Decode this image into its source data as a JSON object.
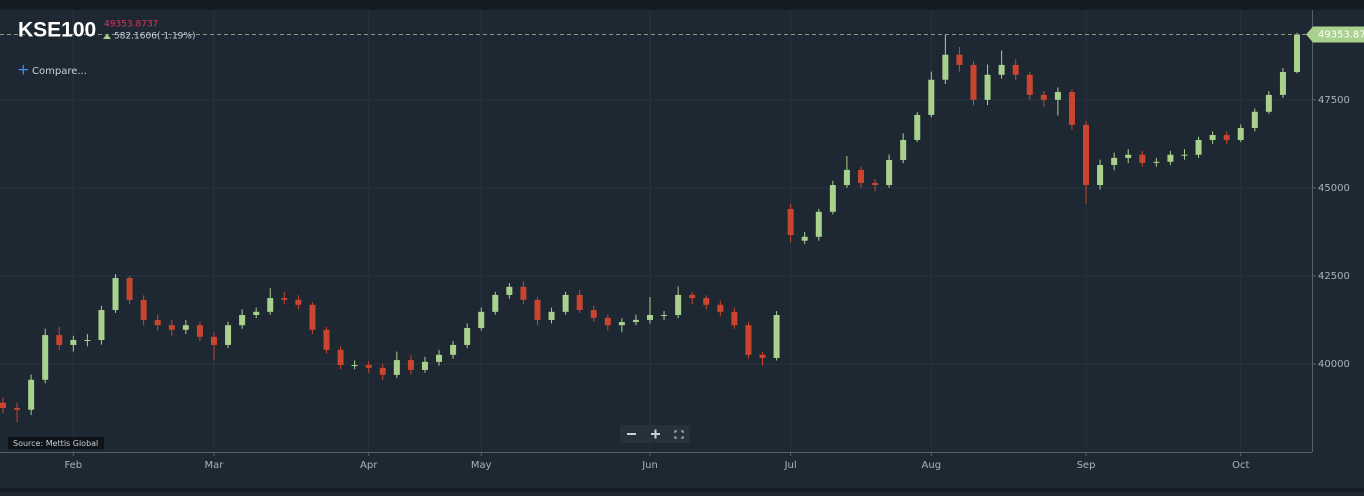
{
  "chart_data": {
    "type": "candlestick",
    "symbol": "KSE100",
    "price": 49353.8737,
    "change": 582.1606,
    "change_pct": {
      "value": 1.19,
      "label": "( 1.19%)"
    },
    "compare_label": "Compare...",
    "source": "Source: Mettis Global",
    "up_color": "#a9d18e",
    "down_color": "#c9452f",
    "grid": true,
    "ylim": [
      37500,
      50050
    ],
    "yticks": [
      40000,
      42500,
      45000,
      47500
    ],
    "categories": [
      null,
      null,
      null,
      null,
      null,
      "Feb",
      null,
      null,
      null,
      null,
      null,
      null,
      null,
      null,
      null,
      "Mar",
      null,
      null,
      null,
      null,
      null,
      null,
      null,
      null,
      null,
      null,
      "Apr",
      null,
      null,
      null,
      null,
      null,
      null,
      null,
      "May",
      null,
      null,
      null,
      null,
      null,
      null,
      null,
      null,
      null,
      null,
      null,
      "Jun",
      null,
      null,
      null,
      null,
      null,
      null,
      null,
      null,
      null,
      "Jul",
      null,
      null,
      null,
      null,
      null,
      null,
      null,
      null,
      null,
      "Aug",
      null,
      null,
      null,
      null,
      null,
      null,
      null,
      null,
      null,
      null,
      "Sep",
      null,
      null,
      null,
      null,
      null,
      null,
      null,
      null,
      null,
      null,
      "Oct",
      null,
      null,
      null,
      null
    ],
    "open": [
      38900,
      38750,
      38700,
      39550,
      40820,
      40540,
      40680,
      40680,
      41530,
      42440,
      41820,
      41250,
      41100,
      40970,
      41100,
      40770,
      40540,
      41100,
      41390,
      41480,
      41870,
      41820,
      41680,
      40970,
      40400,
      39970,
      39970,
      39890,
      39690,
      40110,
      39830,
      40060,
      40260,
      40540,
      41020,
      41480,
      41960,
      42190,
      41820,
      41250,
      41480,
      41960,
      41530,
      41310,
      41100,
      41190,
      41250,
      41390,
      41390,
      41960,
      41870,
      41680,
      41480,
      41100,
      40260,
      40170,
      44400,
      43500,
      43610,
      44320,
      45080,
      45510,
      45140,
      45080,
      45790,
      46360,
      47070,
      48070,
      48780,
      48490,
      47500,
      48210,
      48490,
      48210,
      47640,
      47500,
      47720,
      46790,
      45080,
      45650,
      45850,
      45940,
      45710,
      45740,
      45940,
      45940,
      46360,
      46500,
      46360,
      46700,
      47160,
      47640,
      48290
    ],
    "high": [
      39050,
      38900,
      39700,
      41000,
      41050,
      40800,
      40850,
      41650,
      42550,
      42500,
      41950,
      41400,
      41250,
      41250,
      41200,
      40900,
      41200,
      41550,
      41600,
      42150,
      42050,
      41950,
      41750,
      41050,
      40500,
      40100,
      40080,
      40000,
      40350,
      40250,
      40200,
      40400,
      40650,
      41150,
      41600,
      42050,
      42300,
      42350,
      41900,
      41600,
      42050,
      42100,
      41650,
      41400,
      41300,
      41400,
      41900,
      41500,
      42200,
      42050,
      41950,
      41800,
      41600,
      41200,
      40350,
      41500,
      44550,
      43750,
      44400,
      45200,
      45900,
      45600,
      45250,
      45950,
      46550,
      47150,
      48300,
      49350,
      49000,
      48600,
      48500,
      48900,
      48650,
      48300,
      47750,
      47850,
      47800,
      46900,
      45800,
      46000,
      46100,
      46050,
      45850,
      46050,
      46100,
      46450,
      46600,
      46600,
      46800,
      47250,
      47750,
      48400,
      49400
    ],
    "low": [
      38600,
      38350,
      38550,
      39450,
      40400,
      40350,
      40500,
      40550,
      41450,
      41700,
      41100,
      40950,
      40800,
      40850,
      40650,
      40100,
      40450,
      41000,
      41300,
      41400,
      41700,
      41550,
      40850,
      40300,
      39850,
      39850,
      39750,
      39550,
      39600,
      39700,
      39750,
      39950,
      40150,
      40450,
      40950,
      41400,
      41850,
      41700,
      41100,
      41150,
      41400,
      41450,
      41200,
      40950,
      40900,
      41100,
      41150,
      41250,
      41300,
      41700,
      41550,
      41350,
      41000,
      40150,
      39950,
      40100,
      43450,
      43400,
      43500,
      44250,
      45000,
      45000,
      44900,
      45000,
      45700,
      46300,
      47000,
      47950,
      48300,
      47350,
      47350,
      48100,
      48050,
      47500,
      47300,
      47050,
      46650,
      44550,
      44950,
      45500,
      45700,
      45600,
      45600,
      45650,
      45800,
      45850,
      46250,
      46250,
      46300,
      46600,
      47100,
      47550,
      48250
    ],
    "close": [
      38750,
      38700,
      39550,
      40820,
      40540,
      40680,
      40680,
      41530,
      42440,
      41820,
      41250,
      41100,
      40970,
      41100,
      40770,
      40540,
      41100,
      41390,
      41480,
      41870,
      41820,
      41680,
      40970,
      40400,
      39970,
      39970,
      39890,
      39690,
      40110,
      39830,
      40060,
      40260,
      40540,
      41020,
      41480,
      41960,
      42190,
      41820,
      41250,
      41480,
      41960,
      41530,
      41310,
      41100,
      41190,
      41250,
      41390,
      41390,
      41960,
      41870,
      41680,
      41480,
      41100,
      40260,
      40170,
      41390,
      43660,
      43610,
      44320,
      45080,
      45510,
      45140,
      45080,
      45790,
      46360,
      47070,
      48070,
      48780,
      48490,
      47500,
      48210,
      48490,
      48210,
      47640,
      47500,
      47720,
      46790,
      45080,
      45650,
      45850,
      45940,
      45710,
      45740,
      45940,
      45940,
      46360,
      46500,
      46360,
      46700,
      47160,
      47640,
      48290,
      49353.87
    ]
  }
}
